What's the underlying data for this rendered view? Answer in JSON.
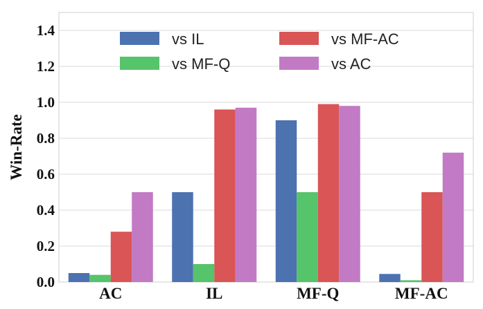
{
  "chart_data": {
    "type": "bar",
    "title": "",
    "xlabel": "",
    "ylabel": "Win-Rate",
    "ylim": [
      0,
      1.5
    ],
    "yticks": [
      "0.0",
      "0.2",
      "0.4",
      "0.6",
      "0.8",
      "1.0",
      "1.2",
      "1.4"
    ],
    "ytick_values": [
      0.0,
      0.2,
      0.4,
      0.6,
      0.8,
      1.0,
      1.2,
      1.4
    ],
    "grid": true,
    "legend_position": "top",
    "categories": [
      "AC",
      "IL",
      "MF-Q",
      "MF-AC"
    ],
    "series": [
      {
        "name": "vs IL",
        "color": "#4c72b0",
        "values": [
          0.05,
          0.5,
          0.9,
          0.045
        ]
      },
      {
        "name": "vs MF-Q",
        "color": "#55c46a",
        "values": [
          0.04,
          0.1,
          0.5,
          0.01
        ]
      },
      {
        "name": "vs MF-AC",
        "color": "#d95556",
        "values": [
          0.28,
          0.96,
          0.99,
          0.5
        ]
      },
      {
        "name": "vs AC",
        "color": "#c27ac4",
        "values": [
          0.5,
          0.97,
          0.98,
          0.72
        ]
      }
    ],
    "legend_order": [
      0,
      2,
      1,
      3
    ]
  }
}
